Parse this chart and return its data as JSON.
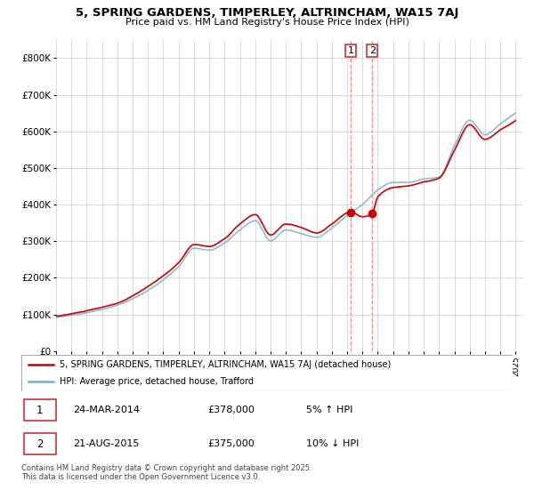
{
  "title": "5, SPRING GARDENS, TIMPERLEY, ALTRINCHAM, WA15 7AJ",
  "subtitle": "Price paid vs. HM Land Registry's House Price Index (HPI)",
  "year_start": 1995,
  "year_end": 2025,
  "ylim": [
    0,
    850000
  ],
  "yticks": [
    0,
    100000,
    200000,
    300000,
    400000,
    500000,
    600000,
    700000,
    800000
  ],
  "ytick_labels": [
    "£0",
    "£100K",
    "£200K",
    "£300K",
    "£400K",
    "£500K",
    "£600K",
    "£700K",
    "£800K"
  ],
  "sale1_date": 2014.23,
  "sale1_price": 378000,
  "sale2_date": 2015.64,
  "sale2_price": 375000,
  "line_color_red": "#cc0000",
  "line_color_blue": "#7aadcc",
  "marker_color_red": "#cc0000",
  "vline_color": "#ee8888",
  "legend_label_red": "5, SPRING GARDENS, TIMPERLEY, ALTRINCHAM, WA15 7AJ (detached house)",
  "legend_label_blue": "HPI: Average price, detached house, Trafford",
  "table_row1": [
    "1",
    "24-MAR-2014",
    "£378,000",
    "5% ↑ HPI"
  ],
  "table_row2": [
    "2",
    "21-AUG-2015",
    "£375,000",
    "10% ↓ HPI"
  ],
  "footnote": "Contains HM Land Registry data © Crown copyright and database right 2025.\nThis data is licensed under the Open Government Licence v3.0.",
  "background_color": "#ffffff",
  "grid_color": "#cccccc",
  "hpi_keypoints": [
    [
      1995,
      92000
    ],
    [
      1997,
      105000
    ],
    [
      1999,
      125000
    ],
    [
      2001,
      165000
    ],
    [
      2003,
      230000
    ],
    [
      2004,
      280000
    ],
    [
      2005,
      275000
    ],
    [
      2006,
      295000
    ],
    [
      2007,
      330000
    ],
    [
      2008,
      355000
    ],
    [
      2009,
      300000
    ],
    [
      2010,
      330000
    ],
    [
      2011,
      320000
    ],
    [
      2012,
      310000
    ],
    [
      2013,
      335000
    ],
    [
      2014,
      370000
    ],
    [
      2015,
      400000
    ],
    [
      2016,
      440000
    ],
    [
      2017,
      460000
    ],
    [
      2018,
      460000
    ],
    [
      2019,
      470000
    ],
    [
      2020,
      475000
    ],
    [
      2021,
      560000
    ],
    [
      2022,
      630000
    ],
    [
      2023,
      590000
    ],
    [
      2024,
      620000
    ],
    [
      2025,
      650000
    ]
  ],
  "red_keypoints": [
    [
      1995,
      95000
    ],
    [
      1997,
      110000
    ],
    [
      1999,
      130000
    ],
    [
      2001,
      175000
    ],
    [
      2003,
      240000
    ],
    [
      2004,
      290000
    ],
    [
      2005,
      285000
    ],
    [
      2006,
      305000
    ],
    [
      2007,
      345000
    ],
    [
      2008,
      370000
    ],
    [
      2009,
      315000
    ],
    [
      2010,
      345000
    ],
    [
      2011,
      335000
    ],
    [
      2012,
      320000
    ],
    [
      2013,
      345000
    ],
    [
      2014.23,
      378000
    ],
    [
      2015,
      365000
    ],
    [
      2015.64,
      375000
    ],
    [
      2016,
      420000
    ],
    [
      2017,
      445000
    ],
    [
      2018,
      450000
    ],
    [
      2019,
      460000
    ],
    [
      2020,
      470000
    ],
    [
      2021,
      545000
    ],
    [
      2022,
      615000
    ],
    [
      2023,
      575000
    ],
    [
      2024,
      600000
    ],
    [
      2025,
      625000
    ]
  ]
}
